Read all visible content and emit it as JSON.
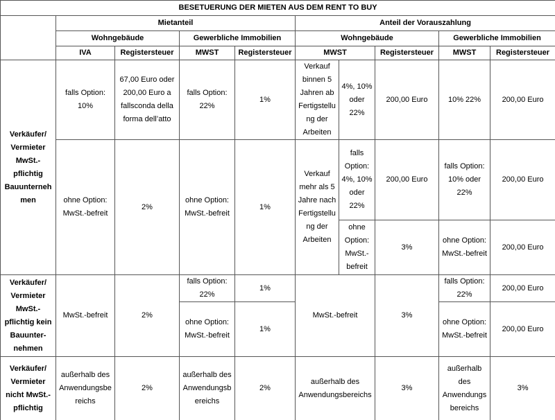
{
  "title": "BESETUERUNG DER  MIETEN AUS DEM RENT TO BUY",
  "header_rows": [
    [
      "Mietanteil",
      "Anteil der Vorauszahlung"
    ],
    [
      "Wohngebäude",
      "Gewerbliche Immobilien",
      "Wohngebäude",
      "Gewerbliche Immobilien"
    ],
    [
      "IVA",
      "Registersteuer",
      "MWST",
      "Registersteuer",
      "MWST",
      "Registersteuer",
      "MWST",
      "Registersteuer"
    ]
  ],
  "body_rows": [
    [
      "Verkäufer/ Vermieter MwSt.-pflichtig Bauunternehmen",
      "falls Option: 10%",
      "67,00 Euro oder 200,00 Euro a fallsconda della forma dell’atto",
      "falls Option: 22%",
      "1%",
      "Verkauf binnen 5 Jahren ab Fertigstellung der Arbeiten",
      "4%, 10% oder 22%",
      "200,00 Euro",
      "10% 22%",
      "200,00 Euro"
    ],
    [
      "ohne Option: MwSt.-befreit",
      "2%",
      "ohne Option: MwSt.-befreit",
      "1%",
      "Verkauf mehr als 5 Jahre nach Fertigstellung der Arbeiten",
      "falls Option: 4%, 10% oder 22%",
      "200,00 Euro",
      "falls Option: 10% oder 22%",
      "200,00 Euro"
    ],
    [
      "ohne Option: MwSt.-befreit",
      "3%",
      "ohne Option: MwSt.-befreit",
      "200,00 Euro"
    ],
    [
      "Verkäufer/ Vermieter MwSt.-pflichtig kein Bauunter-nehmen",
      "MwSt.-befreit",
      "2%",
      "falls Option: 22%",
      "1%",
      "MwSt.-befreit",
      "3%",
      "falls Option: 22%",
      "200,00 Euro"
    ],
    [
      "ohne Option: MwSt.-befreit",
      "1%",
      "ohne Option: MwSt.-befreit",
      "200,00 Euro"
    ],
    [
      "Verkäufer/ Vermieter nicht MwSt.-pflichtig",
      "außerhalb des Anwendungsbereichs",
      "2%",
      "außerhalb des Anwendungsbereichs",
      "2%",
      "außerhalb des Anwendungsbereichs",
      "3%",
      "außerhalb des Anwendungsbereichs",
      "3%"
    ]
  ]
}
